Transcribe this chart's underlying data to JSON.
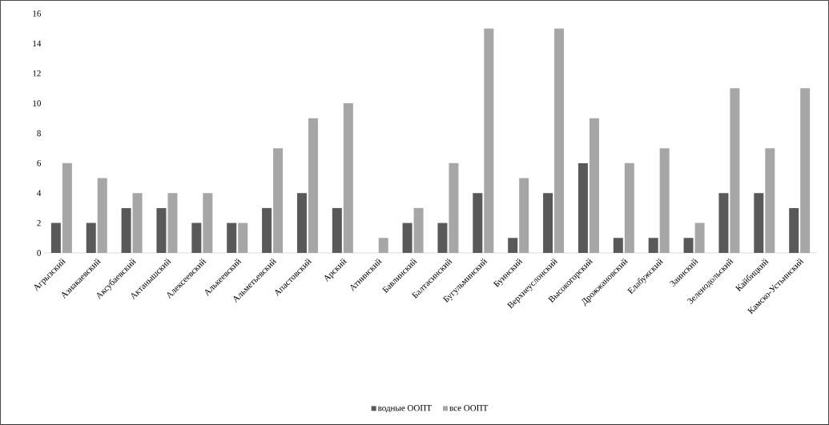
{
  "chart_data": {
    "type": "bar",
    "categories": [
      "Агрызский",
      "Азнакаевский",
      "Аксубаевский",
      "Актанышский",
      "Алексеевский",
      "Алькеевский",
      "Альметьевский",
      "Апастовский",
      "Арский",
      "Атнинский",
      "Бавлинский",
      "Балтасинский",
      "Бугульминский",
      "Буинский",
      "Верхнеуслонский",
      "Высокогорский",
      "Дрожжановский",
      "Елабужский",
      "Заинский",
      "Зеленодольский",
      "Кайбицкий",
      "Камско-Устьинский"
    ],
    "series": [
      {
        "name": "водные ООПТ",
        "color": "#595959",
        "values": [
          2,
          2,
          3,
          3,
          2,
          2,
          3,
          4,
          3,
          0,
          2,
          2,
          4,
          1,
          4,
          6,
          1,
          1,
          1,
          4,
          4,
          3
        ]
      },
      {
        "name": "все ООПТ",
        "color": "#a6a6a6",
        "values": [
          6,
          5,
          4,
          4,
          4,
          2,
          7,
          9,
          10,
          1,
          3,
          6,
          15,
          5,
          15,
          9,
          6,
          7,
          2,
          11,
          7,
          11
        ]
      }
    ],
    "ylim": [
      0,
      16
    ],
    "yticks": [
      0,
      2,
      4,
      6,
      8,
      10,
      12,
      14,
      16
    ],
    "legend": "bottom"
  }
}
